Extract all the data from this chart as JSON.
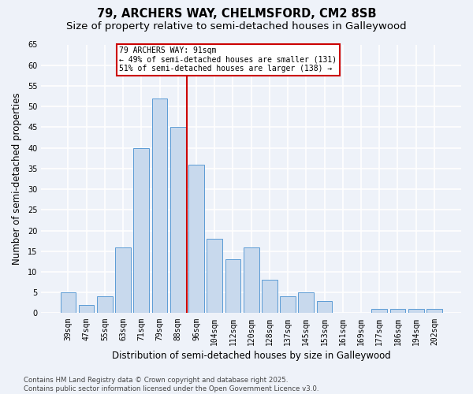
{
  "title": "79, ARCHERS WAY, CHELMSFORD, CM2 8SB",
  "subtitle": "Size of property relative to semi-detached houses in Galleywood",
  "xlabel": "Distribution of semi-detached houses by size in Galleywood",
  "ylabel": "Number of semi-detached properties",
  "bar_color": "#c8d9ed",
  "bar_edge_color": "#5b9bd5",
  "categories": [
    "39sqm",
    "47sqm",
    "55sqm",
    "63sqm",
    "71sqm",
    "79sqm",
    "88sqm",
    "96sqm",
    "104sqm",
    "112sqm",
    "120sqm",
    "128sqm",
    "137sqm",
    "145sqm",
    "153sqm",
    "161sqm",
    "169sqm",
    "177sqm",
    "186sqm",
    "194sqm",
    "202sqm"
  ],
  "values": [
    5,
    2,
    4,
    16,
    40,
    52,
    45,
    36,
    18,
    13,
    16,
    8,
    4,
    5,
    3,
    0,
    0,
    1,
    1,
    1,
    1
  ],
  "vline_label": "79 ARCHERS WAY: 91sqm",
  "annotation_smaller": "← 49% of semi-detached houses are smaller (131)",
  "annotation_larger": "51% of semi-detached houses are larger (138) →",
  "ylim": [
    0,
    65
  ],
  "yticks": [
    0,
    5,
    10,
    15,
    20,
    25,
    30,
    35,
    40,
    45,
    50,
    55,
    60,
    65
  ],
  "background_color": "#eef2f9",
  "grid_color": "#ffffff",
  "title_fontsize": 10.5,
  "subtitle_fontsize": 9.5,
  "axis_label_fontsize": 8.5,
  "tick_fontsize": 7,
  "footer_text": "Contains HM Land Registry data © Crown copyright and database right 2025.\nContains public sector information licensed under the Open Government Licence v3.0.",
  "annotation_box_color": "#ffffff",
  "annotation_box_edge": "#cc0000",
  "vline_color": "#cc0000",
  "vline_pos": 6.5
}
